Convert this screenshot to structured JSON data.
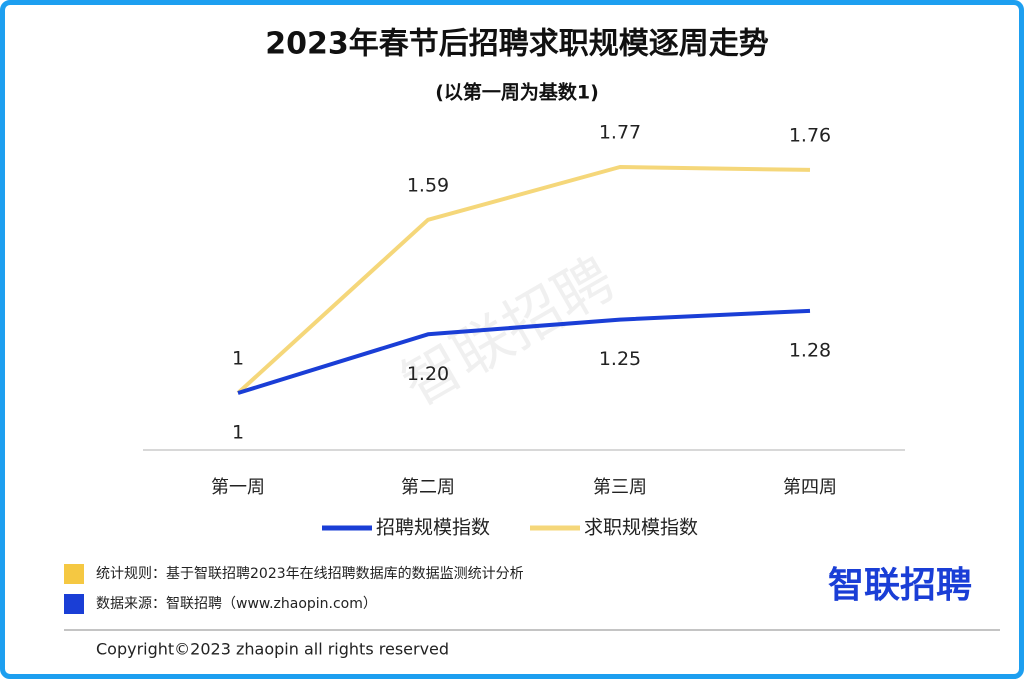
{
  "chart_data": {
    "type": "line",
    "title": "2023年春节后招聘求职规模逐周走势",
    "subtitle": "(以第一周为基数1)",
    "categories": [
      "第一周",
      "第二周",
      "第三周",
      "第四周"
    ],
    "series": [
      {
        "name": "招聘规模指数",
        "color": "#1a3ed6",
        "values": [
          1,
          1.2,
          1.25,
          1.28
        ],
        "value_labels": [
          "1",
          "1.20",
          "1.25",
          "1.28"
        ]
      },
      {
        "name": "求职规模指数",
        "color": "#f5d77a",
        "values": [
          1,
          1.59,
          1.77,
          1.76
        ]
      }
    ],
    "legend": "bottom",
    "watermark": "智联招聘"
  },
  "notes": [
    {
      "text": "统计规则：基于智联招聘2023年在线招聘数据库的数据监测统计分析",
      "color": "#f5c842"
    },
    {
      "text": "数据来源：智联招聘（www.zhaopin.com）",
      "color": "#1a3ed6"
    }
  ],
  "logo": "智联招聘",
  "copyright": "Copyright©2023 zhaopin all rights reserved"
}
